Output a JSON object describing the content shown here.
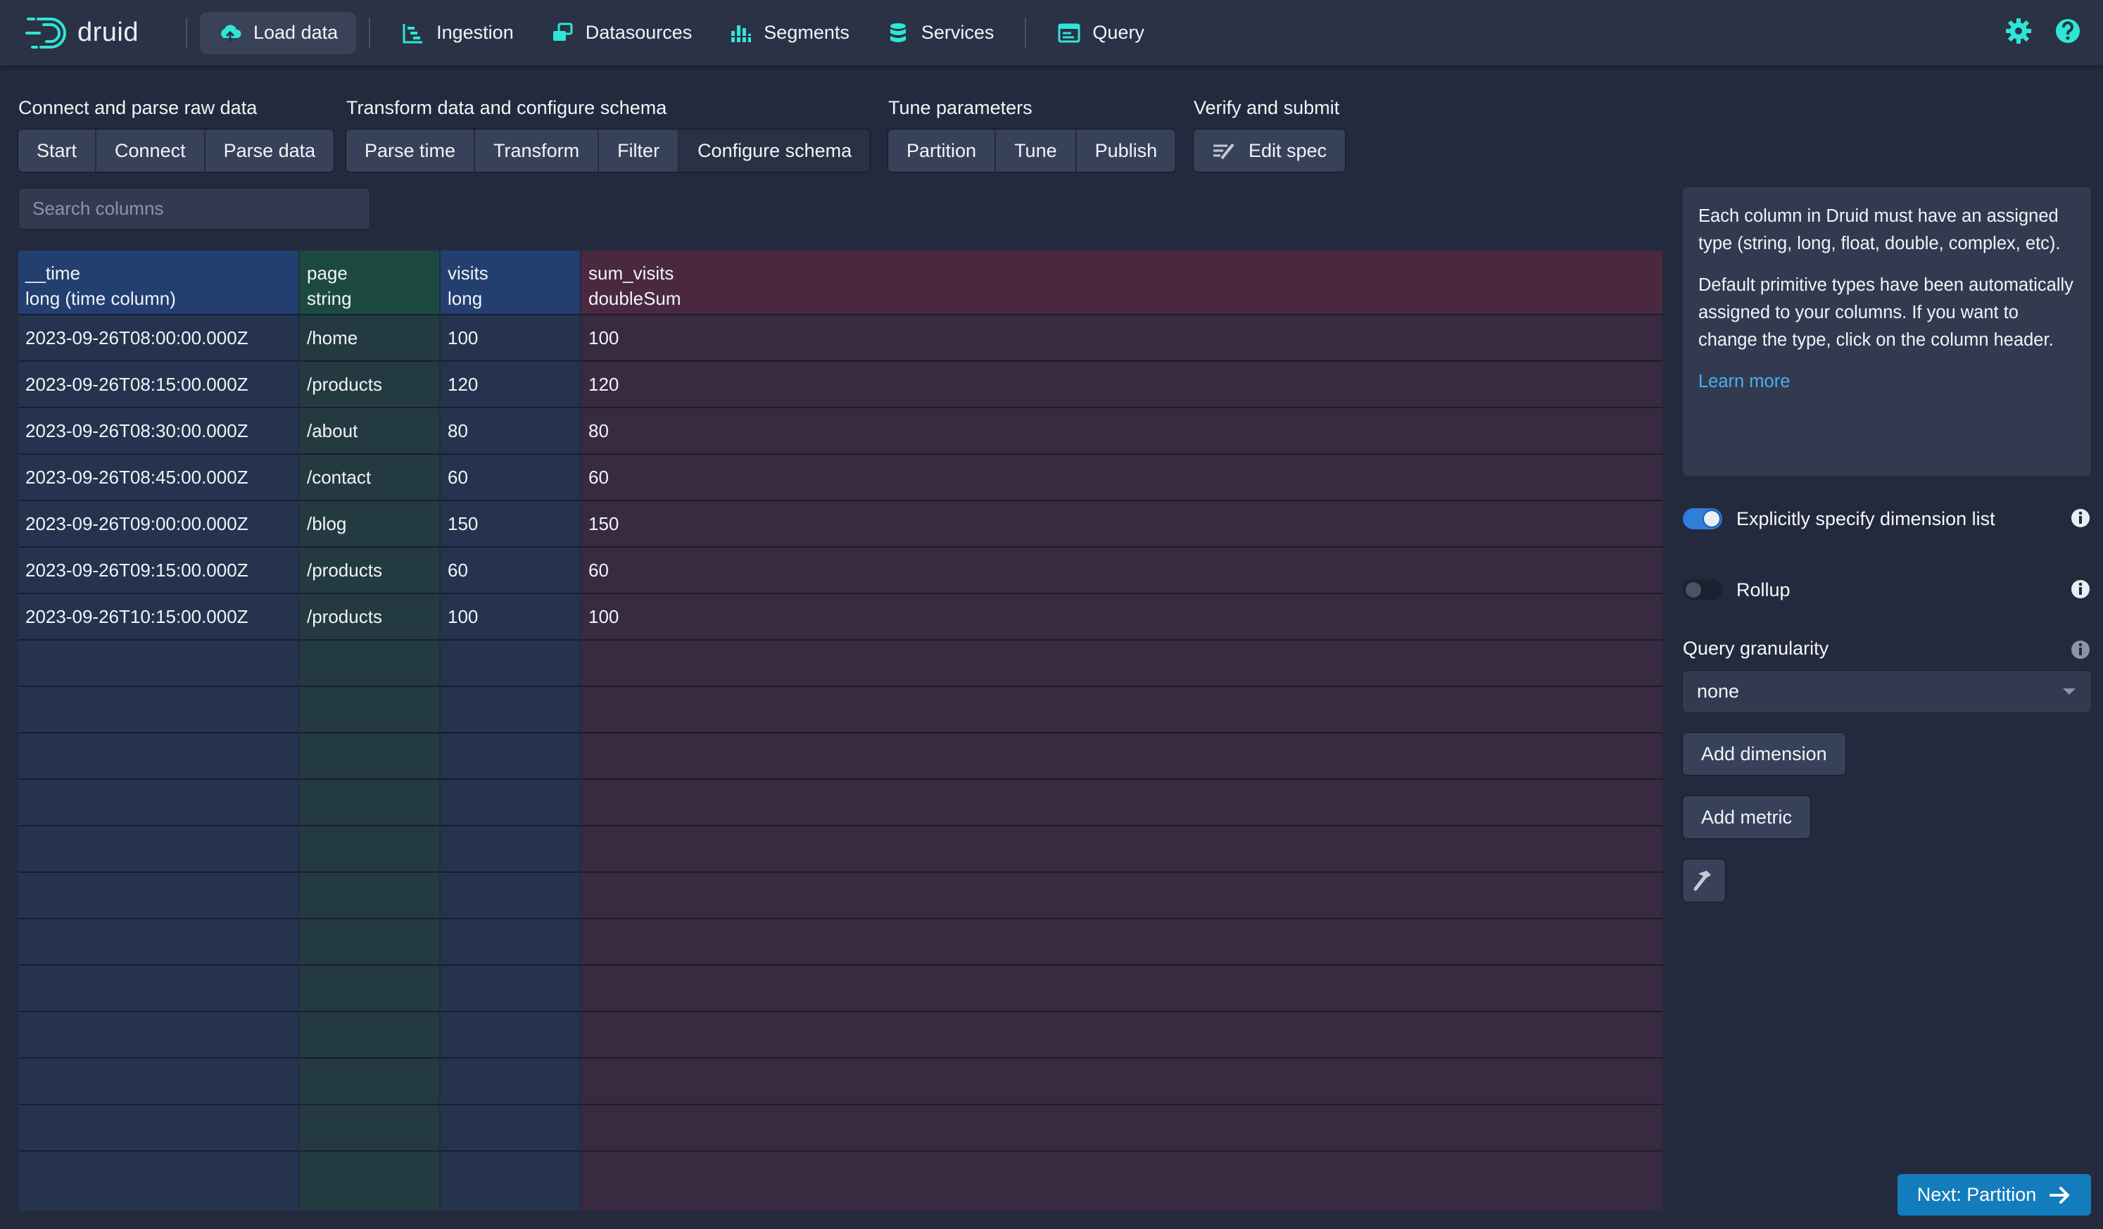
{
  "app": {
    "name": "druid"
  },
  "nav": {
    "items": [
      {
        "label": "Load data",
        "icon": "cloud-upload-icon",
        "active": true
      },
      {
        "label": "Ingestion",
        "icon": "gantt-chart-icon"
      },
      {
        "label": "Datasources",
        "icon": "multi-select-icon"
      },
      {
        "label": "Segments",
        "icon": "stacked-chart-icon"
      },
      {
        "label": "Services",
        "icon": "database-icon"
      },
      {
        "label": "Query",
        "icon": "application-icon"
      }
    ],
    "right_icons": [
      "settings-icon",
      "help-icon"
    ],
    "accent": "#2ee6d6"
  },
  "steps": [
    {
      "title": "Connect and parse raw data",
      "buttons": [
        "Start",
        "Connect",
        "Parse data"
      ]
    },
    {
      "title": "Transform data and configure schema",
      "buttons": [
        "Parse time",
        "Transform",
        "Filter",
        "Configure schema"
      ],
      "active": "Configure schema"
    },
    {
      "title": "Tune parameters",
      "buttons": [
        "Partition",
        "Tune",
        "Publish"
      ]
    },
    {
      "title": "Verify and submit",
      "buttons": [
        "Edit spec"
      ]
    }
  ],
  "search": {
    "placeholder": "Search columns"
  },
  "table": {
    "columns": [
      {
        "name": "__time",
        "type": "long (time column)"
      },
      {
        "name": "page",
        "type": "string"
      },
      {
        "name": "visits",
        "type": "long"
      },
      {
        "name": "sum_visits",
        "type": "doubleSum"
      }
    ],
    "rows": [
      [
        "2023-09-26T08:00:00.000Z",
        "/home",
        "100",
        "100"
      ],
      [
        "2023-09-26T08:15:00.000Z",
        "/products",
        "120",
        "120"
      ],
      [
        "2023-09-26T08:30:00.000Z",
        "/about",
        "80",
        "80"
      ],
      [
        "2023-09-26T08:45:00.000Z",
        "/contact",
        "60",
        "60"
      ],
      [
        "2023-09-26T09:00:00.000Z",
        "/blog",
        "150",
        "150"
      ],
      [
        "2023-09-26T09:15:00.000Z",
        "/products",
        "60",
        "60"
      ],
      [
        "2023-09-26T10:15:00.000Z",
        "/products",
        "100",
        "100"
      ]
    ]
  },
  "side": {
    "info_p1": "Each column in Druid must have an assigned type (string, long, float, double, complex, etc).",
    "info_p2": "Default primitive types have been automatically assigned to your columns. If you want to change the type, click on the column header.",
    "learn_more": "Learn more",
    "explicit_dims_label": "Explicitly specify dimension list",
    "explicit_dims_on": true,
    "rollup_label": "Rollup",
    "rollup_on": false,
    "granularity_label": "Query granularity",
    "granularity_value": "none",
    "add_dimension": "Add dimension",
    "add_metric": "Add metric",
    "next_label": "Next: Partition"
  }
}
